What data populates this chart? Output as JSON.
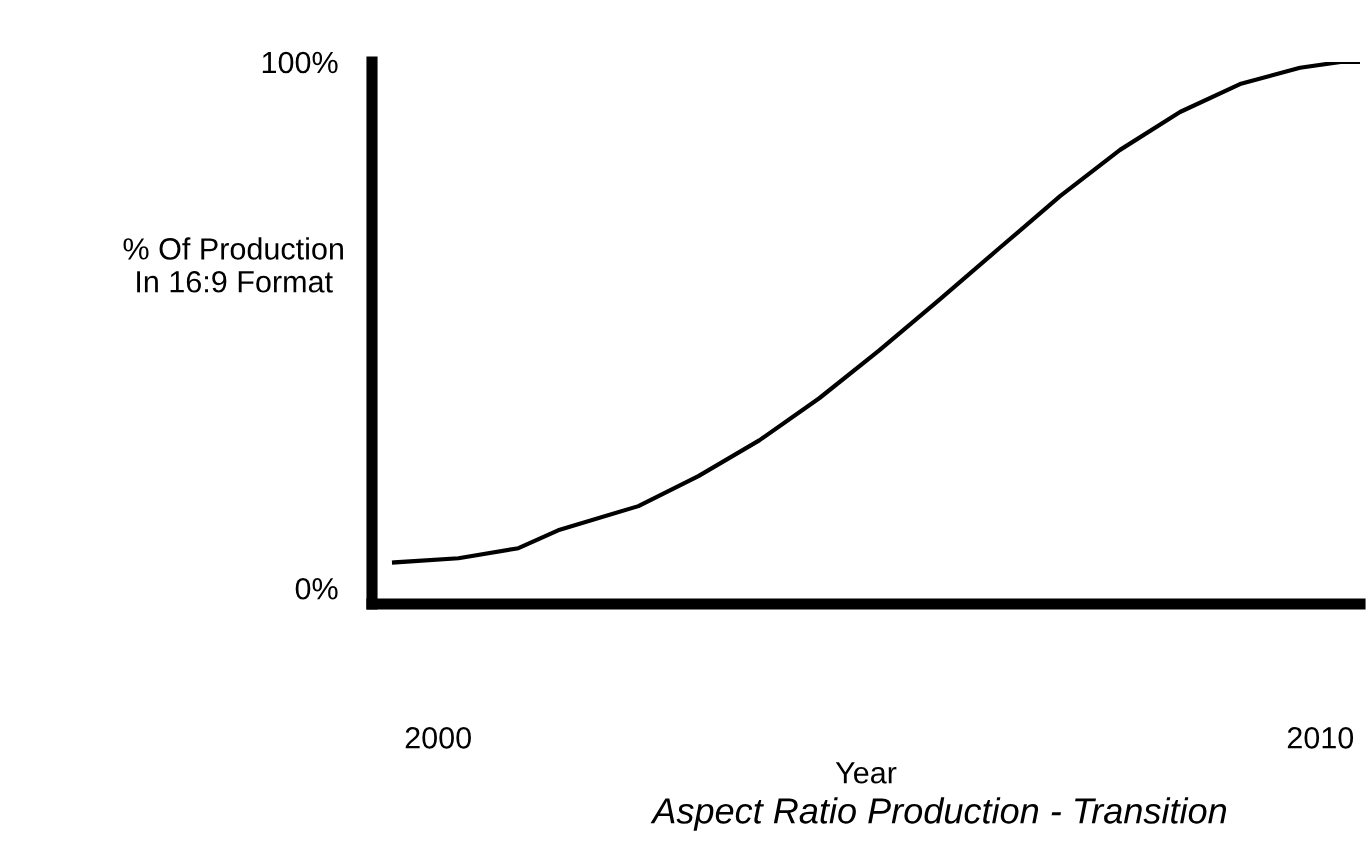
{
  "chart_data": {
    "type": "line",
    "title": "Aspect Ratio Production - Transition",
    "xlabel": "Year",
    "ylabel": "% Of Production\nIn 16:9 Format",
    "x": [
      1999.5,
      2000.23,
      2000.91,
      2001.36,
      2002.27,
      2002.95,
      2003.64,
      2004.32,
      2005.0,
      2005.68,
      2006.36,
      2007.05,
      2007.73,
      2008.41,
      2009.09,
      2009.77,
      2010.23,
      2010.45
    ],
    "values": [
      4.9,
      5.7,
      7.6,
      11.0,
      15.6,
      21.3,
      28.1,
      36.1,
      45.2,
      54.8,
      64.6,
      74.5,
      83.3,
      90.5,
      95.8,
      98.9,
      100,
      100
    ],
    "color": "#000000",
    "xlim": [
      1999.25,
      2010.45
    ],
    "xticks": [
      2000,
      2010
    ],
    "ylim": [
      -3,
      100
    ],
    "yticks": [
      {
        "value": 0,
        "label": "0%"
      },
      {
        "value": 100,
        "label": "100%"
      }
    ],
    "grid": false,
    "legend": false,
    "marker": "none",
    "line_style": "solid"
  }
}
